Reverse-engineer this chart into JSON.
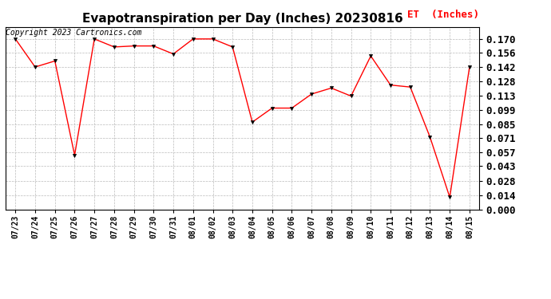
{
  "title": "Evapotranspiration per Day (Inches) 20230816",
  "legend_label": "ET  (Inches)",
  "copyright": "Copyright 2023 Cartronics.com",
  "dates": [
    "07/23",
    "07/24",
    "07/25",
    "07/26",
    "07/27",
    "07/28",
    "07/29",
    "07/30",
    "07/31",
    "08/01",
    "08/02",
    "08/03",
    "08/04",
    "08/05",
    "08/06",
    "08/07",
    "08/08",
    "08/09",
    "08/10",
    "08/11",
    "08/12",
    "08/13",
    "08/14",
    "08/15"
  ],
  "values": [
    0.17,
    0.142,
    0.148,
    0.054,
    0.17,
    0.162,
    0.163,
    0.163,
    0.155,
    0.17,
    0.17,
    0.162,
    0.087,
    0.101,
    0.101,
    0.115,
    0.121,
    0.113,
    0.153,
    0.124,
    0.122,
    0.072,
    0.012,
    0.142
  ],
  "line_color": "#FF0000",
  "marker_color": "#000000",
  "background_color": "#FFFFFF",
  "grid_color": "#BBBBBB",
  "ylim": [
    0.0,
    0.182
  ],
  "yticks": [
    0.0,
    0.014,
    0.028,
    0.043,
    0.057,
    0.071,
    0.085,
    0.099,
    0.113,
    0.128,
    0.142,
    0.156,
    0.17
  ],
  "title_fontsize": 11,
  "legend_fontsize": 9,
  "copyright_fontsize": 7,
  "tick_fontsize": 7,
  "ytick_fontsize": 9
}
